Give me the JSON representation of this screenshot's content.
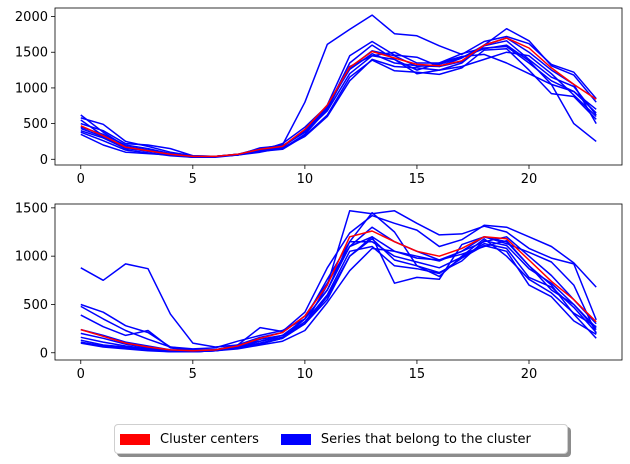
{
  "chart_data": [
    {
      "type": "line",
      "title": "",
      "xlabel": "",
      "ylabel": "",
      "xlim": [
        -1.15,
        24.15
      ],
      "ylim": [
        -80,
        2120
      ],
      "xticks": [
        0,
        5,
        10,
        15,
        20
      ],
      "yticks": [
        0,
        500,
        1000,
        1500,
        2000
      ],
      "x": [
        0,
        1,
        2,
        3,
        4,
        5,
        6,
        7,
        8,
        9,
        10,
        11,
        12,
        13,
        14,
        15,
        16,
        17,
        18,
        19,
        20,
        21,
        22,
        23
      ],
      "series": [
        {
          "name": "member-1",
          "role": "member",
          "color": "#0000ff",
          "values": [
            620,
            380,
            180,
            130,
            80,
            40,
            40,
            70,
            150,
            200,
            800,
            1610,
            1820,
            2020,
            1760,
            1730,
            1590,
            1470,
            1650,
            1720,
            1620,
            1330,
            1220,
            850
          ]
        },
        {
          "name": "member-2",
          "role": "member",
          "color": "#0000ff",
          "values": [
            580,
            490,
            250,
            180,
            100,
            50,
            40,
            60,
            150,
            180,
            400,
            760,
            1450,
            1650,
            1460,
            1430,
            1300,
            1420,
            1600,
            1830,
            1660,
            1310,
            1180,
            800
          ]
        },
        {
          "name": "member-3",
          "role": "member",
          "color": "#0000ff",
          "values": [
            350,
            200,
            100,
            80,
            60,
            40,
            40,
            60,
            100,
            160,
            320,
            600,
            1100,
            1400,
            1300,
            1280,
            1250,
            1300,
            1400,
            1500,
            1450,
            1200,
            900,
            600
          ]
        },
        {
          "name": "member-4",
          "role": "member",
          "color": "#0000ff",
          "values": [
            400,
            300,
            150,
            120,
            70,
            40,
            40,
            70,
            130,
            150,
            350,
            700,
            1300,
            1450,
            1400,
            1250,
            1350,
            1440,
            1470,
            1350,
            1200,
            1050,
            500,
            250
          ]
        },
        {
          "name": "member-5",
          "role": "member",
          "color": "#0000ff",
          "values": [
            450,
            350,
            200,
            150,
            80,
            40,
            40,
            60,
            140,
            180,
            380,
            680,
            1200,
            1450,
            1500,
            1350,
            1350,
            1480,
            1560,
            1580,
            1350,
            1100,
            950,
            700
          ]
        },
        {
          "name": "member-6",
          "role": "member",
          "color": "#0000ff",
          "values": [
            500,
            400,
            220,
            200,
            150,
            50,
            40,
            70,
            120,
            220,
            450,
            750,
            1280,
            1520,
            1450,
            1300,
            1330,
            1430,
            1550,
            1600,
            1380,
            1050,
            950,
            650
          ]
        },
        {
          "name": "member-7",
          "role": "member",
          "color": "#0000ff",
          "values": [
            550,
            330,
            170,
            120,
            60,
            30,
            30,
            60,
            160,
            190,
            380,
            720,
            1350,
            1600,
            1400,
            1200,
            1250,
            1350,
            1600,
            1700,
            1500,
            1250,
            1050,
            500
          ]
        },
        {
          "name": "member-8",
          "role": "member",
          "color": "#0000ff",
          "values": [
            380,
            260,
            130,
            90,
            50,
            30,
            40,
            60,
            110,
            140,
            330,
            620,
            1150,
            1390,
            1240,
            1220,
            1190,
            1280,
            1530,
            1550,
            1250,
            920,
            880,
            560
          ]
        },
        {
          "name": "member-9",
          "role": "member",
          "color": "#0000ff",
          "values": [
            430,
            320,
            160,
            110,
            70,
            40,
            40,
            60,
            130,
            170,
            400,
            740,
            1260,
            1480,
            1350,
            1310,
            1300,
            1370,
            1590,
            1660,
            1400,
            1150,
            1020,
            620
          ]
        },
        {
          "name": "Cluster center",
          "role": "center",
          "color": "#ff0000",
          "values": [
            470,
            330,
            170,
            120,
            70,
            40,
            40,
            70,
            140,
            180,
            420,
            760,
            1290,
            1510,
            1420,
            1330,
            1310,
            1380,
            1600,
            1700,
            1560,
            1280,
            1050,
            840
          ]
        }
      ]
    },
    {
      "type": "line",
      "title": "",
      "xlabel": "",
      "ylabel": "",
      "xlim": [
        -1.15,
        24.15
      ],
      "ylim": [
        -75,
        1540
      ],
      "xticks": [
        0,
        5,
        10,
        15,
        20
      ],
      "yticks": [
        0,
        500,
        1000,
        1500
      ],
      "x": [
        0,
        1,
        2,
        3,
        4,
        5,
        6,
        7,
        8,
        9,
        10,
        11,
        12,
        13,
        14,
        15,
        16,
        17,
        18,
        19,
        20,
        21,
        22,
        23
      ],
      "series": [
        {
          "name": "member-1",
          "role": "member",
          "color": "#0000ff",
          "values": [
            880,
            750,
            920,
            870,
            400,
            100,
            60,
            80,
            120,
            180,
            300,
            700,
            1470,
            1440,
            1470,
            1340,
            1220,
            1230,
            1310,
            1250,
            1080,
            980,
            920,
            340
          ]
        },
        {
          "name": "member-2",
          "role": "member",
          "color": "#0000ff",
          "values": [
            500,
            420,
            280,
            210,
            60,
            30,
            30,
            80,
            260,
            220,
            420,
            880,
            1240,
            1420,
            1340,
            1270,
            1100,
            1170,
            1320,
            1300,
            1200,
            1100,
            930,
            680
          ]
        },
        {
          "name": "member-3",
          "role": "member",
          "color": "#0000ff",
          "values": [
            480,
            350,
            230,
            140,
            60,
            40,
            50,
            120,
            180,
            230,
            350,
            760,
            1150,
            1450,
            1250,
            900,
            790,
            1000,
            1180,
            1000,
            760,
            620,
            410,
            270
          ]
        },
        {
          "name": "member-4",
          "role": "member",
          "color": "#0000ff",
          "values": [
            390,
            270,
            180,
            230,
            50,
            20,
            20,
            60,
            90,
            150,
            350,
            650,
            1100,
            1200,
            720,
            780,
            760,
            1120,
            1200,
            1130,
            1040,
            940,
            700,
            200
          ]
        },
        {
          "name": "member-5",
          "role": "member",
          "color": "#0000ff",
          "values": [
            240,
            180,
            110,
            70,
            30,
            20,
            30,
            80,
            160,
            210,
            380,
            720,
            1100,
            1300,
            1150,
            1050,
            960,
            1050,
            1200,
            1150,
            900,
            650,
            500,
            260
          ]
        },
        {
          "name": "member-6",
          "role": "member",
          "color": "#0000ff",
          "values": [
            200,
            150,
            90,
            50,
            20,
            10,
            20,
            60,
            140,
            180,
            350,
            650,
            1150,
            1150,
            1000,
            940,
            880,
            990,
            1130,
            1080,
            780,
            680,
            470,
            210
          ]
        },
        {
          "name": "member-7",
          "role": "member",
          "color": "#0000ff",
          "values": [
            160,
            110,
            70,
            40,
            20,
            10,
            20,
            50,
            120,
            160,
            320,
            600,
            1050,
            1100,
            900,
            870,
            820,
            980,
            1110,
            1050,
            700,
            580,
            330,
            190
          ]
        },
        {
          "name": "member-8",
          "role": "member",
          "color": "#0000ff",
          "values": [
            130,
            80,
            60,
            30,
            20,
            10,
            20,
            50,
            100,
            150,
            300,
            580,
            1000,
            1180,
            960,
            900,
            830,
            950,
            1160,
            1110,
            870,
            720,
            500,
            240
          ]
        },
        {
          "name": "member-9",
          "role": "member",
          "color": "#0000ff",
          "values": [
            110,
            70,
            50,
            30,
            10,
            10,
            20,
            40,
            80,
            120,
            230,
            520,
            850,
            1080,
            1050,
            980,
            960,
            1020,
            1100,
            1160,
            900,
            700,
            400,
            150
          ]
        },
        {
          "name": "member-10",
          "role": "member",
          "color": "#0000ff",
          "values": [
            100,
            60,
            40,
            20,
            10,
            10,
            20,
            50,
            100,
            150,
            300,
            550,
            1000,
            1200,
            1050,
            1000,
            950,
            1050,
            1150,
            1200,
            1000,
            800,
            550,
            300
          ]
        },
        {
          "name": "Cluster center",
          "role": "center",
          "color": "#ff0000",
          "values": [
            240,
            170,
            100,
            60,
            30,
            20,
            30,
            70,
            150,
            210,
            380,
            700,
            1200,
            1260,
            1150,
            1050,
            1000,
            1080,
            1200,
            1180,
            960,
            740,
            550,
            320
          ]
        }
      ]
    }
  ],
  "legend": {
    "placement": "bottom-center",
    "entries": [
      {
        "label": "Cluster centers",
        "color": "#ff0000"
      },
      {
        "label": "Series that belong to the cluster",
        "color": "#0000ff"
      }
    ]
  }
}
